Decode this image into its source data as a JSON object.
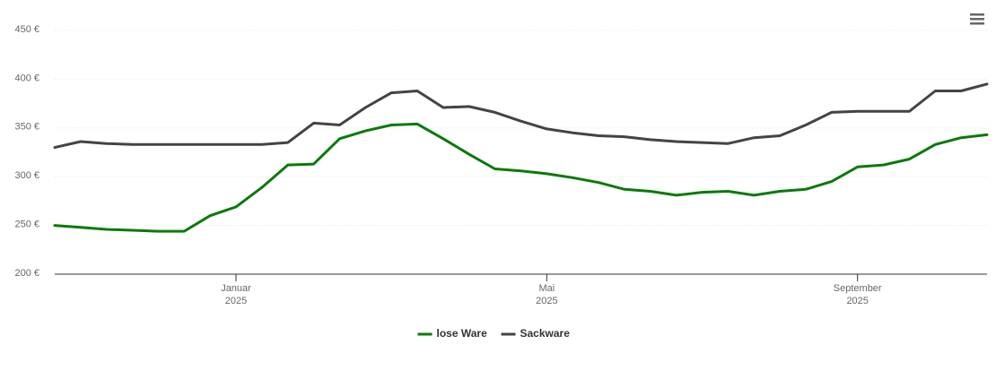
{
  "chart_data": {
    "type": "line",
    "categories": [
      null,
      null,
      null,
      null,
      null,
      null,
      null,
      "Januar\n2025",
      null,
      null,
      null,
      null,
      null,
      null,
      null,
      null,
      null,
      null,
      null,
      "Mai\n2025",
      null,
      null,
      null,
      null,
      null,
      null,
      null,
      null,
      null,
      null,
      null,
      "September\n2025",
      null,
      null,
      null,
      null,
      null
    ],
    "series": [
      {
        "name": "lose Ware",
        "color": "#0a7a0a",
        "values": [
          250,
          248,
          246,
          245,
          244,
          244,
          260,
          269,
          289,
          312,
          313,
          339,
          347,
          353,
          354,
          339,
          323,
          308,
          306,
          303,
          299,
          294,
          287,
          285,
          281,
          284,
          285,
          281,
          285,
          287,
          295,
          310,
          312,
          318,
          333,
          340,
          343
        ]
      },
      {
        "name": "Sackware",
        "color": "#434348",
        "values": [
          330,
          336,
          334,
          333,
          333,
          333,
          333,
          333,
          333,
          335,
          355,
          353,
          371,
          386,
          388,
          371,
          372,
          366,
          357,
          349,
          345,
          342,
          341,
          338,
          336,
          335,
          334,
          340,
          342,
          353,
          366,
          367,
          367,
          367,
          388,
          388,
          395
        ]
      }
    ],
    "ylim": [
      200,
      450
    ],
    "yticks": [
      {
        "value": 200,
        "label": "200 €"
      },
      {
        "value": 250,
        "label": "250 €"
      },
      {
        "value": 300,
        "label": "300 €"
      },
      {
        "value": 350,
        "label": "350 €"
      },
      {
        "value": 400,
        "label": "400 €"
      },
      {
        "value": 450,
        "label": "450 €"
      }
    ],
    "grid": true,
    "legend": "bottom"
  }
}
